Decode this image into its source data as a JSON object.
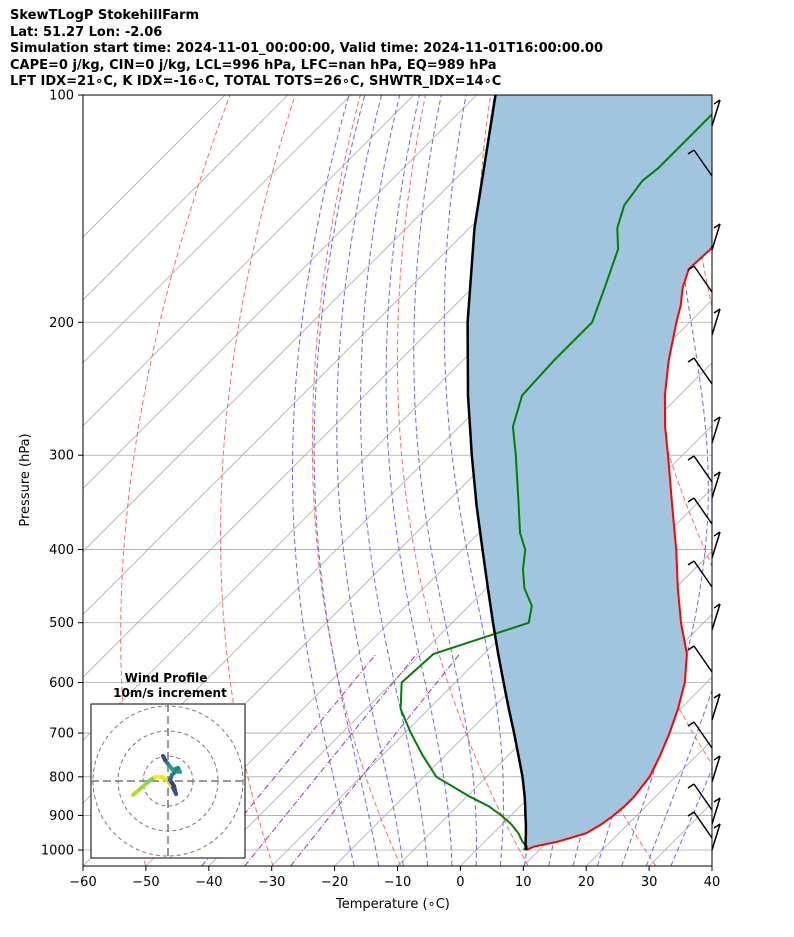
{
  "header": {
    "lines": [
      "SkewTLogP StokehillFarm",
      "Lat: 51.27   Lon: -2.06",
      "Simulation start time: 2024-11-01_00:00:00, Valid time: 2024-11-01T16:00:00.00",
      "CAPE=0 j/kg, CIN=0 j/kg, LCL=996 hPa, LFC=nan hPa, EQ=989 hPa",
      "LFT IDX=21∘C, K IDX=-16∘C, TOTAL TOTS=26∘C, SHWTR_IDX=14∘C"
    ]
  },
  "chart_data": {
    "type": "line",
    "title": "SkewTLogP StokehillFarm",
    "xlabel": "Temperature (∘C)",
    "ylabel": "Pressure (hPa)",
    "xlim": [
      -60,
      40
    ],
    "ylim": [
      1050,
      100
    ],
    "y_scale": "log",
    "grid": true,
    "x_ticks": [
      -60,
      -50,
      -40,
      -30,
      -20,
      -10,
      0,
      10,
      20,
      30,
      40
    ],
    "y_ticks": [
      100,
      200,
      300,
      400,
      500,
      600,
      700,
      800,
      900,
      1000
    ],
    "colors": {
      "temperature": "#ff0000",
      "dewpoint": "#008000",
      "parcel": "#000000",
      "fill": "#a2c5df",
      "dry_adiabats": "#ff6666",
      "moist_adiabats": "#6666ff",
      "mixing_ratio": "#9933cc",
      "isotherms": "#aaaaaa"
    },
    "series": [
      {
        "key": "temperature",
        "pressure": [
          1000,
          990,
          975,
          950,
          925,
          900,
          875,
          850,
          800,
          750,
          700,
          650,
          600,
          550,
          500,
          450,
          400,
          350,
          300,
          275,
          250,
          225,
          200,
          190,
          180,
          170,
          160,
          150,
          140,
          130,
          125,
          120,
          115,
          110,
          100
        ],
        "temp": [
          7.9,
          8.6,
          11.6,
          14.8,
          15.8,
          16.3,
          16.6,
          16.6,
          15.9,
          14.2,
          12.1,
          9.6,
          6.5,
          2.3,
          -3.6,
          -9.6,
          -16.0,
          -23.6,
          -32.3,
          -37.3,
          -42.3,
          -47.2,
          -52.1,
          -54.1,
          -56.6,
          -58.6,
          -58.3,
          -59.7,
          -60.6,
          -63.2,
          -64.9,
          -66.3,
          -68.1,
          -69.3,
          -72.9
        ]
      },
      {
        "key": "dewpoint",
        "pressure": [
          1000,
          990,
          975,
          950,
          925,
          900,
          875,
          850,
          800,
          750,
          700,
          650,
          600,
          550,
          525,
          500,
          475,
          450,
          425,
          400,
          380,
          350,
          300,
          275,
          250,
          225,
          200,
          180,
          160,
          150,
          140,
          130,
          125,
          100
        ],
        "temp": [
          7.5,
          7.5,
          6.0,
          4.0,
          1.5,
          -1.5,
          -5.0,
          -9.5,
          -18.0,
          -23.5,
          -29.0,
          -34.5,
          -38.5,
          -38.0,
          -33.0,
          -27.8,
          -30.0,
          -34.0,
          -37.2,
          -40.0,
          -43.5,
          -48.0,
          -56.5,
          -61.5,
          -65.0,
          -65.5,
          -65.5,
          -69.0,
          -73.0,
          -76.5,
          -79.0,
          -80.0,
          -79.5,
          -79.5
        ]
      },
      {
        "key": "parcel",
        "pressure": [
          1000,
          990,
          975,
          950,
          925,
          900,
          875,
          850,
          800,
          750,
          700,
          650,
          600,
          550,
          500,
          450,
          400,
          350,
          300,
          250,
          200,
          150,
          100
        ],
        "temp": [
          8.0,
          7.3,
          6.5,
          5.2,
          3.8,
          2.3,
          0.8,
          -0.8,
          -4.3,
          -8.3,
          -12.6,
          -17.3,
          -22.3,
          -27.7,
          -33.5,
          -39.8,
          -46.8,
          -54.7,
          -63.5,
          -73.6,
          -85.3,
          -99.2,
          -117.0
        ]
      }
    ],
    "wind_profile": {
      "title": "Wind Profile",
      "subtitle": "10m/s increment"
    }
  }
}
